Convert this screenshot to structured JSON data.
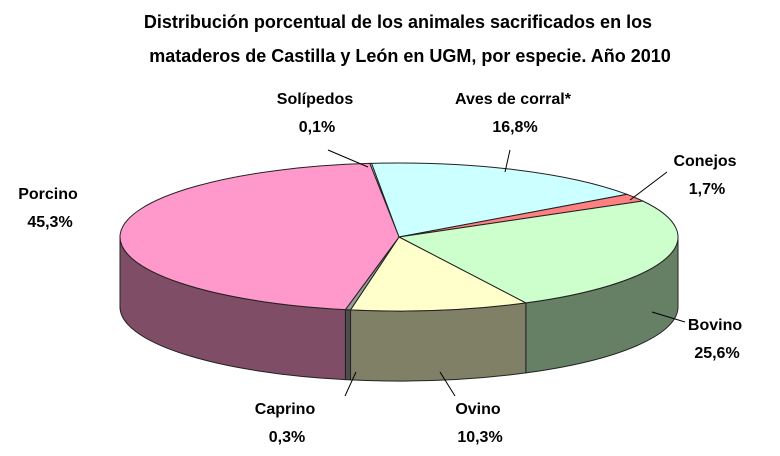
{
  "chart_data": {
    "type": "pie3d",
    "title": [
      "Distribución porcentual de los animales sacrificados en los",
      "mataderos de Castilla y León en UGM, por especie. Año 2010"
    ],
    "categories": [
      "Solípedos",
      "Aves de corral*",
      "Conejos",
      "Bovino",
      "Ovino",
      "Caprino",
      "Porcino"
    ],
    "values": [
      0.1,
      16.8,
      1.7,
      25.6,
      10.3,
      0.3,
      45.3
    ],
    "value_labels": [
      "0,1%",
      "16,8%",
      "1,7%",
      "25,6%",
      "10,3%",
      "0,3%",
      "45,3%"
    ],
    "colors": [
      "#ffffff",
      "#ccffff",
      "#ff8080",
      "#ccffcc",
      "#ffffcc",
      "#999999",
      "#ff99cc"
    ]
  }
}
